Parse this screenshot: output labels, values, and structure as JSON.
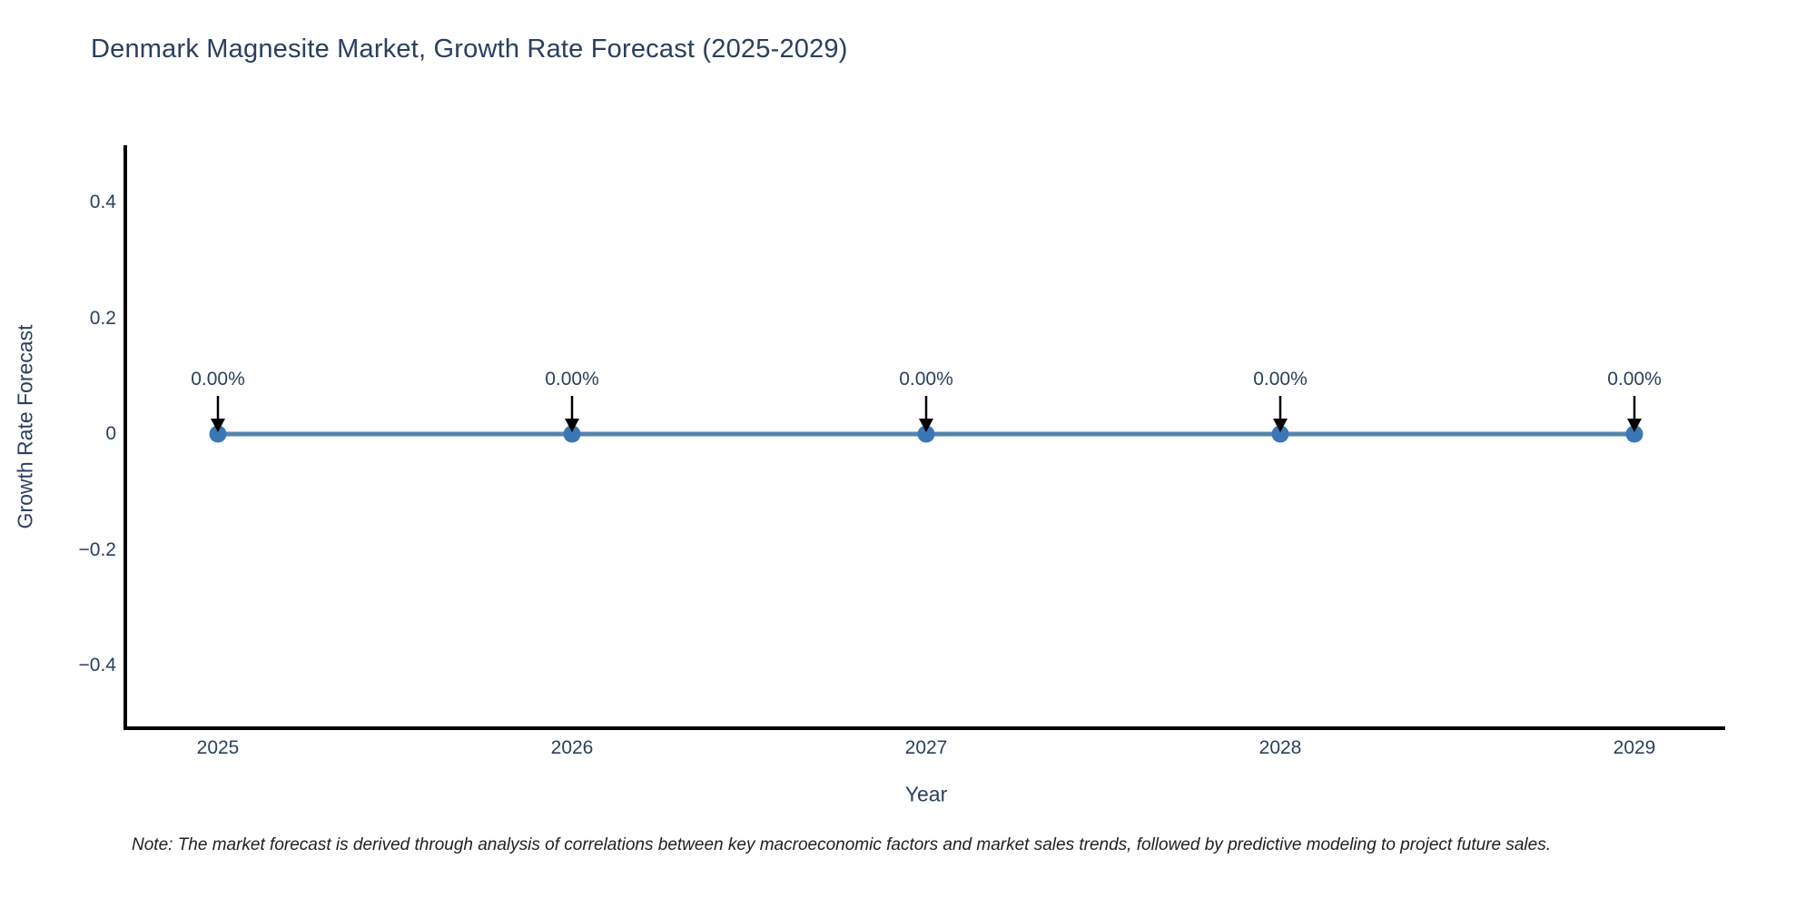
{
  "note": "Note: The market forecast is derived through analysis of correlations between key macroeconomic factors and market sales trends, followed by predictive modeling to project future sales.",
  "chart_data": {
    "type": "line",
    "title": "Denmark Magnesite Market, Growth Rate Forecast (2025-2029)",
    "xlabel": "Year",
    "ylabel": "Growth Rate Forecast",
    "categories": [
      "2025",
      "2026",
      "2027",
      "2028",
      "2029"
    ],
    "values": [
      0,
      0,
      0,
      0,
      0
    ],
    "point_labels": [
      "0.00%",
      "0.00%",
      "0.00%",
      "0.00%",
      "0.00%"
    ],
    "yticks": [
      {
        "label": "0.4",
        "value": 0.4
      },
      {
        "label": "0.2",
        "value": 0.2
      },
      {
        "label": "0",
        "value": 0
      },
      {
        "label": "−0.2",
        "value": -0.2
      },
      {
        "label": "−0.4",
        "value": -0.4
      }
    ],
    "ylim": [
      -0.51,
      0.5
    ],
    "grid": false,
    "legend": "none",
    "annotation_arrows": true,
    "colors": {
      "line": "#5585ad",
      "marker": "#3a77b4",
      "arrow": "#000000",
      "text": "#2a3f5f",
      "axis": "#000000",
      "note": "#1f1f1f"
    }
  }
}
